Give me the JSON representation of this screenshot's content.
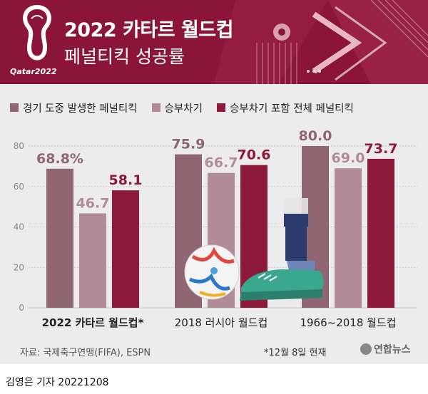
{
  "header": {
    "title_line1": "2022 카타르 월드컵",
    "title_line2": "페널티킥 성공률",
    "logo_text": "Qatar2022",
    "colors": {
      "background": "#8a1538",
      "accent": "#b03055"
    }
  },
  "chart_data": {
    "type": "bar",
    "categories": [
      "2022 카타르 월드컵*",
      "2018 러시아 월드컵",
      "1966~2018 월드컵"
    ],
    "series": [
      {
        "name": "경기 도중 발생한 페널티킥",
        "color": "#8f6672",
        "values": [
          68.8,
          75.9,
          80.0
        ],
        "labels": [
          "68.8%",
          "75.9",
          "80.0"
        ]
      },
      {
        "name": "승부차기",
        "color": "#b18c98",
        "values": [
          46.7,
          66.7,
          69.0
        ],
        "labels": [
          "46.7",
          "66.7",
          "69.0"
        ]
      },
      {
        "name": "승부차기 포함 전체 페널티킥",
        "color": "#8e1a3a",
        "values": [
          58.1,
          70.6,
          73.7
        ],
        "labels": [
          "58.1",
          "70.6",
          "73.7"
        ]
      }
    ],
    "yticks": [
      "0",
      "20",
      "40",
      "60",
      "80"
    ],
    "ylim": [
      0,
      80
    ],
    "grid": true,
    "legend_position": "top"
  },
  "footer": {
    "source": "자료: 국제축구연맹(FIFA), ESPN",
    "note": "*12월 8일 현재",
    "agency": "연합뉴스",
    "reporter": "김영은 기자  20221208"
  }
}
